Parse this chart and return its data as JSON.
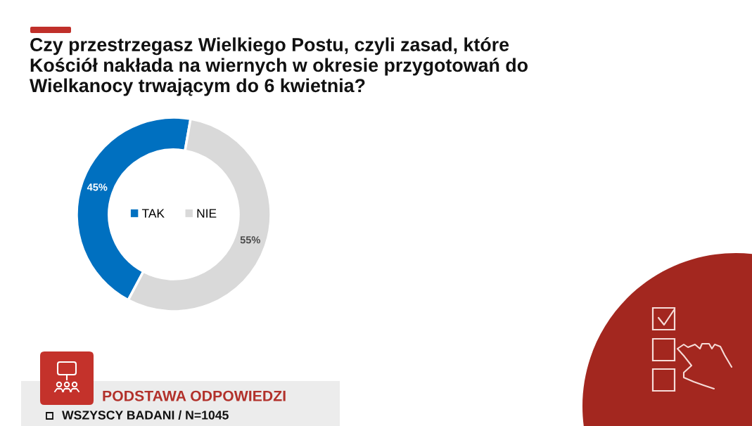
{
  "chart_data": {
    "type": "donut",
    "title": "Czy przestrzegasz Wielkiego Postu, czyli zasad, które\nKościół nakłada na wiernych w okresie przygotowań do\nWielkanocy trwającym do 6 kwietnia?",
    "categories": [
      "TAK",
      "NIE"
    ],
    "values": [
      45,
      55
    ],
    "colors": [
      "#0070c0",
      "#d9d9d9"
    ],
    "value_labels": [
      "45%",
      "55%"
    ],
    "legend": "center",
    "annotations": [
      "PODSTAWA ODPOWIEDZI",
      "WSZYSCY BADANI / N=1045"
    ]
  }
}
